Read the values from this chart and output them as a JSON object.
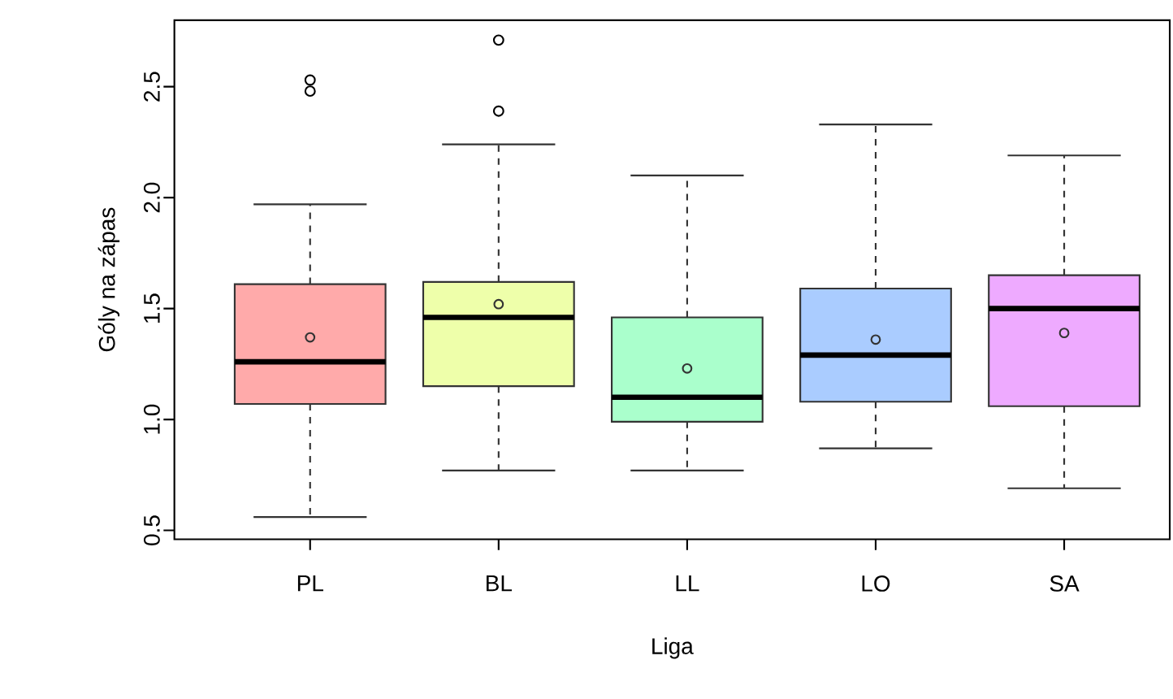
{
  "chart_data": {
    "type": "box",
    "xlabel": "Liga",
    "ylabel": "Góly na zápas",
    "categories": [
      "PL",
      "BL",
      "LL",
      "LO",
      "SA"
    ],
    "colors": [
      "#ffaaaa",
      "#eeffaa",
      "#aaffcc",
      "#aaccff",
      "#eeaaff"
    ],
    "ylim": [
      0.46,
      2.8
    ],
    "yticks": [
      0.5,
      {
        "value": 1.0,
        "label": "1.0"
      },
      1.5,
      {
        "value": 2.0,
        "label": "2.0"
      },
      2.5
    ],
    "boxes": [
      {
        "low": 0.56,
        "q1": 1.07,
        "median": 1.26,
        "q3": 1.61,
        "high": 1.97,
        "mean": 1.37,
        "outliers": [
          2.53,
          2.48
        ]
      },
      {
        "low": 0.77,
        "q1": 1.15,
        "median": 1.46,
        "q3": 1.62,
        "high": 2.24,
        "mean": 1.52,
        "outliers": [
          2.71,
          2.39
        ]
      },
      {
        "low": 0.77,
        "q1": 0.99,
        "median": 1.1,
        "q3": 1.46,
        "high": 2.1,
        "mean": 1.23
      },
      {
        "low": 0.87,
        "q1": 1.08,
        "median": 1.29,
        "q3": 1.59,
        "high": 2.33,
        "mean": 1.36
      },
      {
        "low": 0.69,
        "q1": 1.06,
        "median": 1.5,
        "q3": 1.65,
        "high": 2.19,
        "mean": 1.39
      }
    ]
  }
}
